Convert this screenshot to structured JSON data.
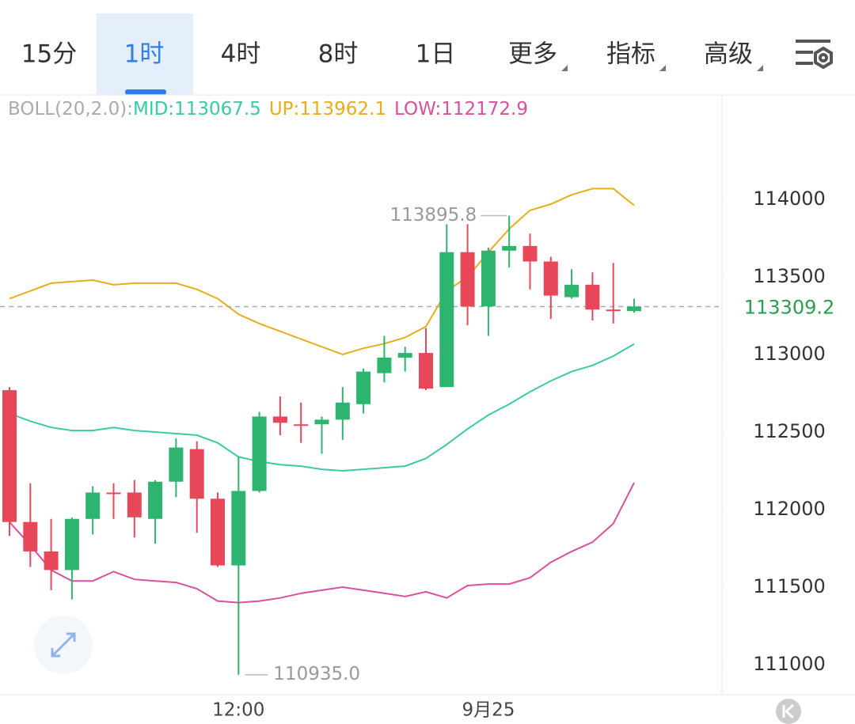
{
  "tabs": {
    "items": [
      "15分",
      "1时",
      "4时",
      "8时",
      "1日",
      "更多",
      "指标",
      "高级"
    ],
    "selected": 1,
    "dropdown": [
      5,
      6,
      7
    ]
  },
  "chart_data": {
    "type": "candlestick",
    "indicator": "BOLL(20,2.0):",
    "categories": [
      null,
      null,
      null,
      null,
      null,
      null,
      null,
      null,
      null,
      null,
      null,
      "12:00",
      null,
      null,
      null,
      null,
      null,
      null,
      null,
      null,
      null,
      null,
      null,
      "9月25",
      null,
      null,
      null,
      null,
      null,
      null,
      null
    ],
    "open": [
      112770,
      111920,
      111730,
      111610,
      111940,
      112110,
      112110,
      111940,
      112180,
      112390,
      112070,
      111640,
      112120,
      112600,
      112550,
      112550,
      112580,
      112680,
      112880,
      112980,
      113010,
      112790,
      113660,
      113310,
      113670,
      113700,
      113600,
      113370,
      113450,
      113290,
      113280
    ],
    "high": [
      112790,
      112170,
      111940,
      111950,
      112150,
      112170,
      112190,
      112190,
      112460,
      112440,
      112110,
      112340,
      112630,
      112730,
      112690,
      112600,
      112790,
      112910,
      113120,
      113050,
      113170,
      113840,
      113840,
      113690,
      113895.8,
      113780,
      113630,
      113550,
      113530,
      113590,
      113360
    ],
    "low": [
      111830,
      111630,
      111480,
      111420,
      111840,
      111940,
      111820,
      111780,
      112080,
      111850,
      111630,
      110935,
      112110,
      112480,
      112430,
      112360,
      112450,
      112620,
      112820,
      112890,
      112770,
      112790,
      113190,
      113120,
      113560,
      113420,
      113230,
      113360,
      113220,
      113200,
      113270
    ],
    "close": [
      111920,
      111730,
      111610,
      111940,
      112110,
      112100,
      111950,
      112180,
      112400,
      112070,
      111640,
      112120,
      112600,
      112560,
      112540,
      112580,
      112690,
      112890,
      112980,
      113010,
      112780,
      113660,
      113310,
      113670,
      113700,
      113600,
      113380,
      113450,
      113290,
      113280,
      113309.2
    ],
    "up_color": "#2db46e",
    "down_color": "#e8475a",
    "series": [
      {
        "name": "MID",
        "legend_label": "MID:113067.5",
        "color": "#3cc9a6",
        "values": [
          112620,
          112570,
          112530,
          112510,
          112510,
          112530,
          112510,
          112500,
          112490,
          112480,
          112430,
          112340,
          112310,
          112290,
          112280,
          112260,
          112250,
          112260,
          112270,
          112280,
          112330,
          112420,
          112520,
          112610,
          112680,
          112760,
          112830,
          112890,
          112930,
          112990,
          113067.5
        ]
      },
      {
        "name": "UP",
        "legend_label": "UP:113962.1",
        "color": "#e8ad1a",
        "values": [
          113360,
          113410,
          113460,
          113470,
          113480,
          113450,
          113460,
          113460,
          113460,
          113420,
          113360,
          113260,
          113200,
          113150,
          113100,
          113050,
          113000,
          113040,
          113070,
          113110,
          113180,
          113410,
          113500,
          113660,
          113810,
          113930,
          113970,
          114030,
          114070,
          114070,
          113962.1
        ]
      },
      {
        "name": "LOW",
        "legend_label": "LOW:112172.9",
        "color": "#d9509e",
        "values": [
          111920,
          111770,
          111610,
          111540,
          111540,
          111600,
          111550,
          111540,
          111530,
          111490,
          111410,
          111400,
          111410,
          111430,
          111460,
          111480,
          111500,
          111480,
          111460,
          111440,
          111470,
          111430,
          111510,
          111520,
          111520,
          111560,
          111660,
          111730,
          111790,
          111910,
          112172.9
        ]
      }
    ],
    "annotations": [
      {
        "value": 113895.8,
        "label": "113895.8"
      },
      {
        "value": 110935,
        "label": "110935.0"
      }
    ],
    "ylim": [
      110806,
      114674
    ],
    "yticks": [
      111000,
      111500,
      112000,
      112500,
      113000,
      113500,
      114000
    ],
    "grid": false
  }
}
